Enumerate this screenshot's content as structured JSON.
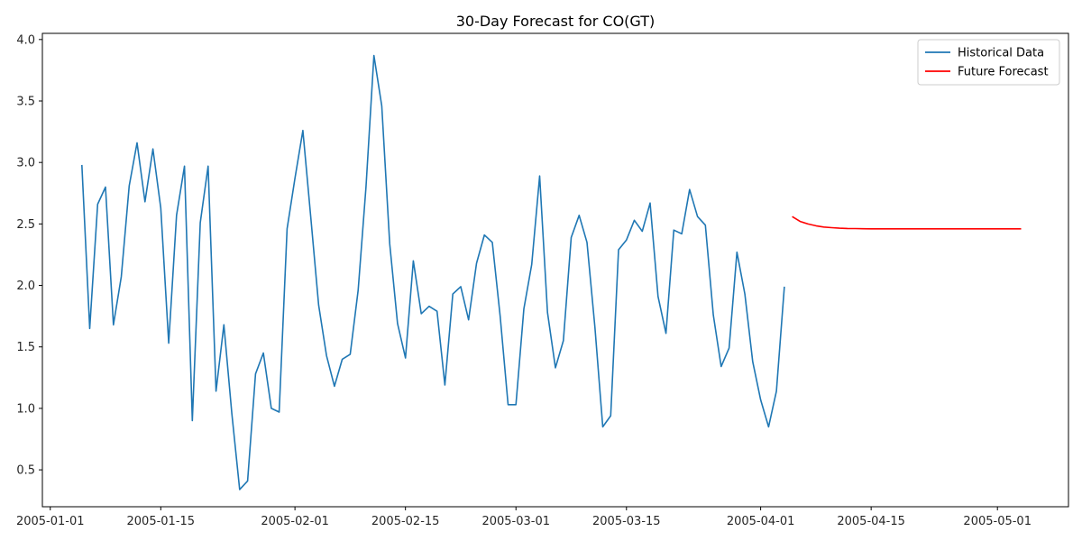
{
  "chart_data": {
    "type": "line",
    "title": "30-Day Forecast for CO(GT)",
    "xlabel": "",
    "ylabel": "",
    "x_type": "date",
    "xlim": [
      "2004-12-31",
      "2005-05-10"
    ],
    "ylim": [
      0.2,
      4.05
    ],
    "grid": false,
    "legend_placement": "top-right",
    "x_ticks": [
      "2005-01-01",
      "2005-01-15",
      "2005-02-01",
      "2005-02-15",
      "2005-03-01",
      "2005-03-15",
      "2005-04-01",
      "2005-04-15",
      "2005-05-01"
    ],
    "x_tick_labels": [
      "2005-01-01",
      "2005-01-15",
      "2005-02-01",
      "2005-02-15",
      "2005-03-01",
      "2005-03-15",
      "2005-04-01",
      "2005-04-15",
      "2005-05-01"
    ],
    "y_ticks": [
      0.5,
      1.0,
      1.5,
      2.0,
      2.5,
      3.0,
      3.5,
      4.0
    ],
    "y_tick_labels": [
      "0.5",
      "1.0",
      "1.5",
      "2.0",
      "2.5",
      "3.0",
      "3.5",
      "4.0"
    ],
    "series": [
      {
        "name": "Historical Data",
        "color": "#1f77b4",
        "x": [
          "2005-01-05",
          "2005-01-06",
          "2005-01-07",
          "2005-01-08",
          "2005-01-09",
          "2005-01-10",
          "2005-01-11",
          "2005-01-12",
          "2005-01-13",
          "2005-01-14",
          "2005-01-15",
          "2005-01-16",
          "2005-01-17",
          "2005-01-18",
          "2005-01-19",
          "2005-01-20",
          "2005-01-21",
          "2005-01-22",
          "2005-01-23",
          "2005-01-24",
          "2005-01-25",
          "2005-01-26",
          "2005-01-27",
          "2005-01-28",
          "2005-01-29",
          "2005-01-30",
          "2005-01-31",
          "2005-02-01",
          "2005-02-02",
          "2005-02-03",
          "2005-02-04",
          "2005-02-05",
          "2005-02-06",
          "2005-02-07",
          "2005-02-08",
          "2005-02-09",
          "2005-02-10",
          "2005-02-11",
          "2005-02-12",
          "2005-02-13",
          "2005-02-14",
          "2005-02-15",
          "2005-02-16",
          "2005-02-17",
          "2005-02-18",
          "2005-02-19",
          "2005-02-20",
          "2005-02-21",
          "2005-02-22",
          "2005-02-23",
          "2005-02-24",
          "2005-02-25",
          "2005-02-26",
          "2005-02-27",
          "2005-02-28",
          "2005-03-01",
          "2005-03-02",
          "2005-03-03",
          "2005-03-04",
          "2005-03-05",
          "2005-03-06",
          "2005-03-07",
          "2005-03-08",
          "2005-03-09",
          "2005-03-10",
          "2005-03-11",
          "2005-03-12",
          "2005-03-13",
          "2005-03-14",
          "2005-03-15",
          "2005-03-16",
          "2005-03-17",
          "2005-03-18",
          "2005-03-19",
          "2005-03-20",
          "2005-03-21",
          "2005-03-22",
          "2005-03-23",
          "2005-03-24",
          "2005-03-25",
          "2005-03-26",
          "2005-03-27",
          "2005-03-28",
          "2005-03-29",
          "2005-03-30",
          "2005-03-31",
          "2005-04-01",
          "2005-04-02",
          "2005-04-03",
          "2005-04-04"
        ],
        "y": [
          2.98,
          1.65,
          2.66,
          2.8,
          1.68,
          2.07,
          2.81,
          3.16,
          2.68,
          3.11,
          2.63,
          1.53,
          2.57,
          2.97,
          0.9,
          2.51,
          2.97,
          1.14,
          1.68,
          0.96,
          0.34,
          0.41,
          1.28,
          1.45,
          1.0,
          0.97,
          2.46,
          2.87,
          3.26,
          2.56,
          1.84,
          1.43,
          1.18,
          1.4,
          1.44,
          1.96,
          2.8,
          3.87,
          3.46,
          2.34,
          1.69,
          1.41,
          2.2,
          1.77,
          1.83,
          1.79,
          1.19,
          1.93,
          1.99,
          1.72,
          2.18,
          2.41,
          2.35,
          1.75,
          1.03,
          1.03,
          1.81,
          2.17,
          2.89,
          1.78,
          1.33,
          1.55,
          2.39,
          2.57,
          2.35,
          1.66,
          0.85,
          0.94,
          2.29,
          2.37,
          2.53,
          2.44,
          2.67,
          1.91,
          1.61,
          2.45,
          2.42,
          2.78,
          2.56,
          2.49,
          1.76,
          1.34,
          1.49,
          2.27,
          1.93,
          1.38,
          1.07,
          0.85,
          1.14,
          1.99
        ]
      },
      {
        "name": "Future Forecast",
        "color": "#ff0000",
        "x": [
          "2005-04-05",
          "2005-04-06",
          "2005-04-07",
          "2005-04-08",
          "2005-04-09",
          "2005-04-10",
          "2005-04-11",
          "2005-04-12",
          "2005-04-13",
          "2005-04-14",
          "2005-04-15",
          "2005-04-16",
          "2005-04-17",
          "2005-04-18",
          "2005-04-19",
          "2005-04-20",
          "2005-04-21",
          "2005-04-22",
          "2005-04-23",
          "2005-04-24",
          "2005-04-25",
          "2005-04-26",
          "2005-04-27",
          "2005-04-28",
          "2005-04-29",
          "2005-04-30",
          "2005-05-01",
          "2005-05-02",
          "2005-05-03",
          "2005-05-04"
        ],
        "y": [
          2.56,
          2.52,
          2.5,
          2.485,
          2.475,
          2.47,
          2.465,
          2.463,
          2.462,
          2.461,
          2.46,
          2.46,
          2.46,
          2.46,
          2.46,
          2.46,
          2.46,
          2.46,
          2.46,
          2.46,
          2.46,
          2.46,
          2.46,
          2.46,
          2.46,
          2.46,
          2.46,
          2.46,
          2.46,
          2.46
        ]
      }
    ]
  }
}
